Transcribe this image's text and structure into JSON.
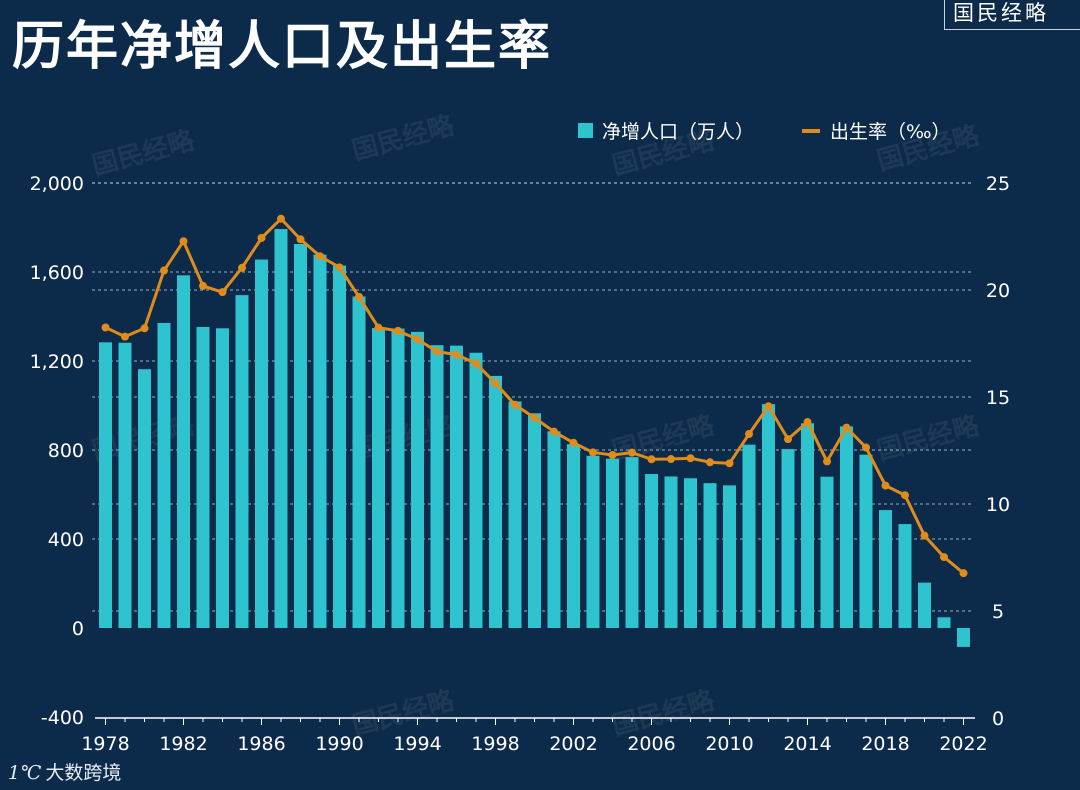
{
  "title": "历年净增人口及出生率",
  "brand": "国民经略",
  "watermark": "国民经略",
  "footer_logo": {
    "mark": "1℃",
    "text": "大数跨境"
  },
  "colors": {
    "background": "#0c2a4a",
    "bar": "#2ec4cf",
    "line": "#e08c1a",
    "grid": "#9fb0c4"
  },
  "chart_data": {
    "type": "bar",
    "title": "历年净增人口及出生率",
    "legend": {
      "position": "top-right",
      "entries": [
        "净增人口（万人）",
        "出生率（‰）"
      ]
    },
    "x_tick_labels": [
      "1978",
      "1982",
      "1986",
      "1990",
      "1994",
      "1998",
      "2002",
      "2006",
      "2010",
      "2014",
      "2018",
      "2022"
    ],
    "years": [
      1978,
      1979,
      1980,
      1981,
      1982,
      1983,
      1984,
      1985,
      1986,
      1987,
      1988,
      1989,
      1990,
      1991,
      1992,
      1993,
      1994,
      1995,
      1996,
      1997,
      1998,
      1999,
      2000,
      2001,
      2002,
      2003,
      2004,
      2005,
      2006,
      2007,
      2008,
      2009,
      2010,
      2011,
      2012,
      2013,
      2014,
      2015,
      2016,
      2017,
      2018,
      2019,
      2020,
      2021,
      2022
    ],
    "series": [
      {
        "name": "净增人口（万人）",
        "type": "bar",
        "axis": "left",
        "values": [
          1284,
          1282,
          1163,
          1371,
          1585,
          1353,
          1347,
          1496,
          1656,
          1793,
          1726,
          1678,
          1629,
          1490,
          1348,
          1346,
          1331,
          1271,
          1269,
          1237,
          1133,
          1018,
          965,
          884,
          826,
          774,
          761,
          768,
          692,
          681,
          673,
          651,
          641,
          824,
          1006,
          804,
          920,
          680,
          906,
          779,
          530,
          467,
          204,
          48,
          -85
        ]
      },
      {
        "name": "出生率（‰）",
        "type": "line",
        "axis": "right",
        "values": [
          18.25,
          17.82,
          18.21,
          20.91,
          22.28,
          20.19,
          19.9,
          21.04,
          22.43,
          23.33,
          22.37,
          21.58,
          21.06,
          19.68,
          18.24,
          18.09,
          17.7,
          17.12,
          16.98,
          16.57,
          15.64,
          14.64,
          14.03,
          13.38,
          12.86,
          12.41,
          12.29,
          12.4,
          12.09,
          12.1,
          12.14,
          11.95,
          11.9,
          13.27,
          14.57,
          13.03,
          13.83,
          11.99,
          13.57,
          12.64,
          10.86,
          10.41,
          8.52,
          7.52,
          6.77
        ]
      }
    ],
    "y_left": {
      "min": -400,
      "max": 2000,
      "ticks": [
        -400,
        0,
        400,
        800,
        1200,
        1600,
        2000
      ],
      "tick_labels": [
        "-400",
        "0",
        "400",
        "800",
        "1,200",
        "1,600",
        "2,000"
      ]
    },
    "y_right": {
      "min": 0,
      "max": 25,
      "ticks": [
        0,
        5,
        10,
        15,
        20,
        25
      ],
      "tick_labels": [
        "0",
        "5",
        "10",
        "15",
        "20",
        "25"
      ]
    },
    "grid": true
  }
}
